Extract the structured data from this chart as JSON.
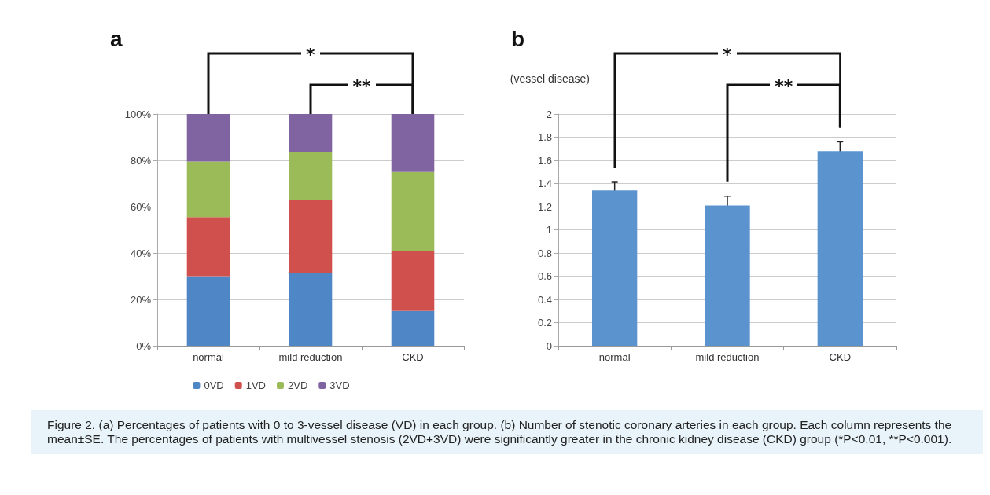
{
  "chart_data": [
    {
      "type": "bar",
      "title": "a",
      "stacked": true,
      "categories": [
        "normal",
        "mild reduction",
        "CKD"
      ],
      "series": [
        {
          "name": "0VD",
          "color": "#4f86c6",
          "values": [
            30,
            31.5,
            15
          ]
        },
        {
          "name": "1VD",
          "color": "#d0504d",
          "values": [
            25.5,
            31.5,
            26
          ]
        },
        {
          "name": "2VD",
          "color": "#9bbb59",
          "values": [
            24,
            20.5,
            34
          ]
        },
        {
          "name": "3VD",
          "color": "#8064a2",
          "values": [
            20.5,
            16.5,
            25
          ]
        }
      ],
      "ylim": [
        0,
        100
      ],
      "yticks": [
        {
          "value": 0,
          "label": "0%"
        },
        {
          "value": 20,
          "label": "20%"
        },
        {
          "value": 40,
          "label": "40%"
        },
        {
          "value": 60,
          "label": "60%"
        },
        {
          "value": 80,
          "label": "80%"
        },
        {
          "value": 100,
          "label": "100%"
        }
      ],
      "grid": "y",
      "legend": "bottom",
      "annotations": [
        "*",
        "**",
        "Figure 2.    (a) Percentages of patients with 0 to 3-vessel disease (VD) in each group. (b) Number of stenotic coronary arteries in each group. Each column represents the mean±SE. The percentages of patients with multivessel stenosis (2VD+3VD) were significantly greater in the chronic kidney disease (CKD) group (*P<0.01, **P<0.001)."
      ]
    },
    {
      "type": "bar",
      "title": "b",
      "ylabel": "(vessel disease)",
      "categories": [
        "normal",
        "mild reduction",
        "CKD"
      ],
      "values": [
        1.34,
        1.21,
        1.68
      ],
      "errors": [
        0.07,
        0.08,
        0.08
      ],
      "color": "#5b93cf",
      "ylim": [
        0,
        2
      ],
      "yticks": [
        0,
        0.2,
        0.4,
        0.6,
        0.8,
        1,
        1.2,
        1.4,
        1.6,
        1.8,
        2
      ],
      "grid": "y",
      "annotations": [
        "*",
        "**"
      ]
    }
  ]
}
